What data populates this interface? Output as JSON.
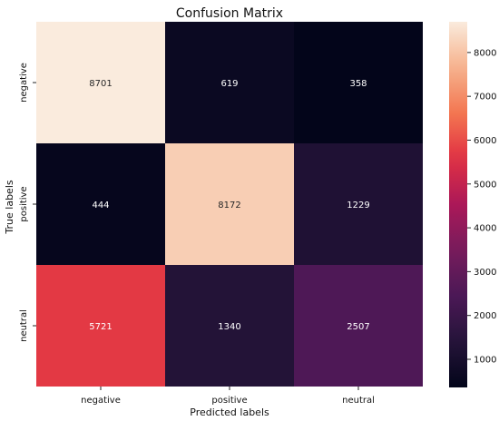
{
  "chart_data": {
    "type": "heatmap",
    "title": "Confusion Matrix",
    "xlabel": "Predicted labels",
    "ylabel": "True labels",
    "x_categories": [
      "negative",
      "positive",
      "neutral"
    ],
    "y_categories": [
      "negative",
      "positive",
      "neutral"
    ],
    "values": [
      [
        8701,
        619,
        358
      ],
      [
        444,
        8172,
        1229
      ],
      [
        5721,
        1340,
        2507
      ]
    ],
    "colorbar": {
      "min": 358,
      "max": 8701,
      "ticks": [
        1000,
        2000,
        3000,
        4000,
        5000,
        6000,
        7000,
        8000
      ],
      "colormap": "rocket"
    }
  }
}
